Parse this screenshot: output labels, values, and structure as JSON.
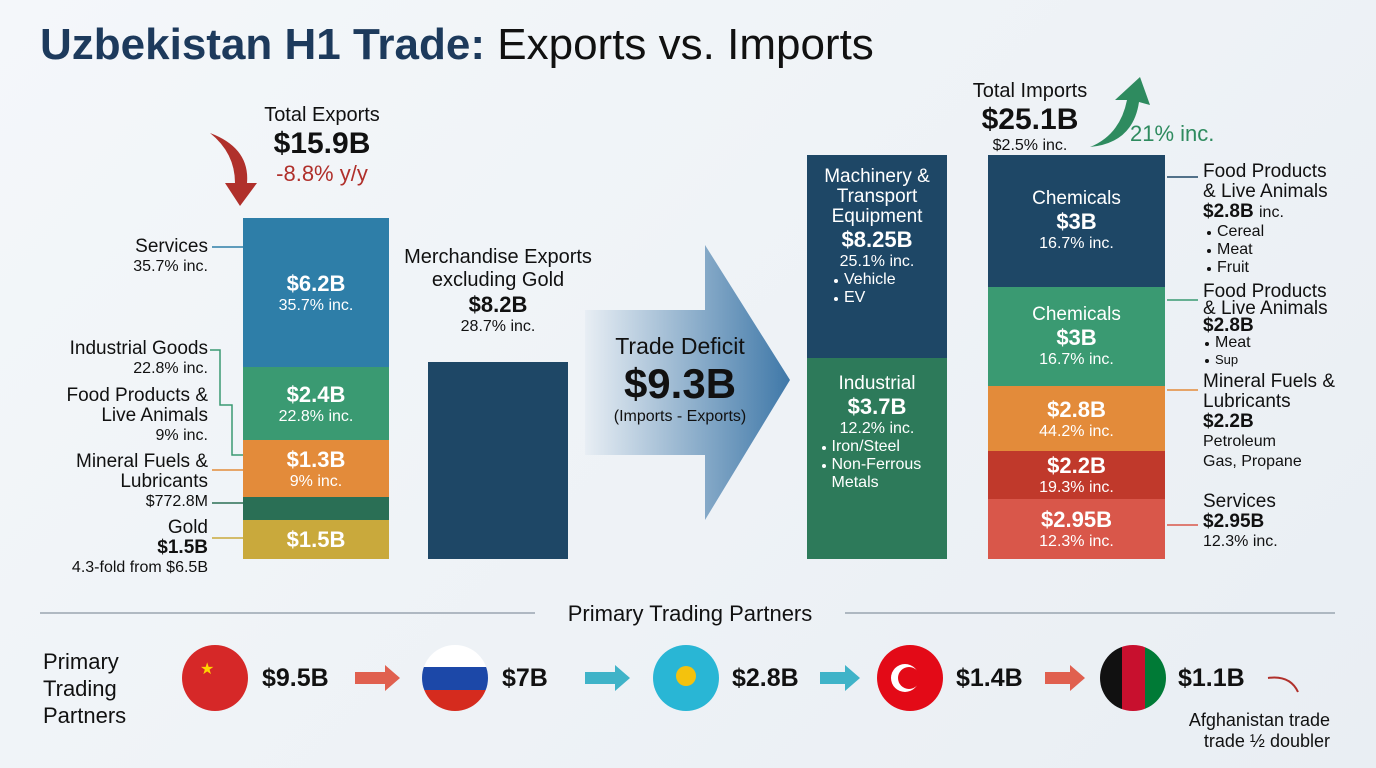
{
  "title": {
    "bold": "Uzbekistan H1 Trade:",
    "rest": "Exports vs. Imports"
  },
  "exports": {
    "label": "Total Exports",
    "value": "$15.9B",
    "change": "-8.8% y/y",
    "segments": [
      {
        "value": "$6.2B",
        "note": "35.7% inc."
      },
      {
        "value": "$2.4B",
        "note": "22.8% inc."
      },
      {
        "value": "$1.3B",
        "note": "9% inc."
      },
      {
        "value": "$1.5B"
      }
    ],
    "side_labels": [
      {
        "name": "Services",
        "note": "35.7% inc."
      },
      {
        "name": "Industrial Goods",
        "note": "22.8% inc."
      },
      {
        "name": "Food Products & Live Animals",
        "note": "9% inc."
      },
      {
        "name": "Mineral Fuels & Lubricants",
        "note": "$772.8M"
      },
      {
        "name": "Gold",
        "value": "$1.5B",
        "note": "4.3-fold from $6.5B"
      }
    ]
  },
  "merchandise": {
    "label": "Merchandise Exports excluding Gold",
    "value": "$8.2B",
    "note": "28.7% inc."
  },
  "deficit": {
    "label": "Trade Deficit",
    "value": "$9.3B",
    "note": "(Imports - Exports)"
  },
  "imports": {
    "label": "Total Imports",
    "value": "$25.1B",
    "note": "$2.5% inc.",
    "growth": "21% inc.",
    "left_column": [
      {
        "name": "Machinery & Transport Equipment",
        "value": "$8.25B",
        "note": "25.1% inc.",
        "items": [
          "Vehicle",
          "EV"
        ]
      },
      {
        "name": "Industrial",
        "value": "$3.7B",
        "note": "12.2% inc.",
        "items": [
          "Iron/Steel",
          "Non-Ferrous Metals"
        ]
      }
    ],
    "right_column": [
      {
        "name": "Chemicals",
        "value": "$3B",
        "note": "16.7% inc."
      },
      {
        "name": "Chemicals",
        "value": "$3B",
        "note": "16.7% inc."
      },
      {
        "value": "$2.8B",
        "note": "44.2% inc."
      },
      {
        "value": "$2.2B",
        "note": "19.3% inc."
      },
      {
        "value": "$2.95B",
        "note": "12.3% inc."
      }
    ],
    "side_labels": [
      {
        "name": "Food Products & Live Animals",
        "value": "$2.8B",
        "suffix": "inc.",
        "items": [
          "Cereal",
          "Meat",
          "Fruit"
        ]
      },
      {
        "name": "Food Products & Live Animals",
        "value": "$2.8B",
        "items": [
          "Meat",
          "Sup"
        ]
      },
      {
        "name": "Mineral Fuels & Lubricants",
        "value": "$2.2B",
        "items": [
          "Petroleum",
          "Gas, Propane"
        ]
      },
      {
        "name": "Services",
        "value": "$2.95B",
        "note": "12.3% inc."
      }
    ]
  },
  "partners": {
    "heading": "Primary Trading Partners",
    "label": "Primary Trading Partners",
    "values": [
      "$9.5B",
      "$7B",
      "$2.8B",
      "$1.4B",
      "$1.1B"
    ],
    "note": "Afghanistan trade trade ½ doubler"
  }
}
